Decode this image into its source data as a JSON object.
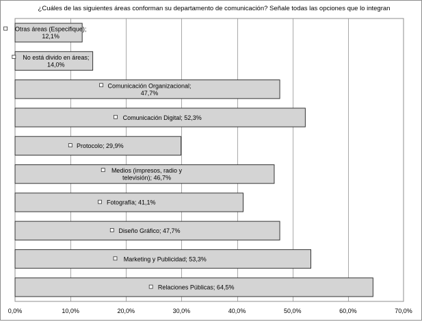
{
  "chart_data": {
    "type": "bar",
    "orientation": "horizontal",
    "title": "¿Cuáles de las siguientes áreas conforman su departamento de comunicación? Señale todas las opciones que lo integran",
    "xlim": [
      0,
      70
    ],
    "grid": "vertical",
    "legend": "none",
    "colors": {
      "bar_fill": "#d4d4d4",
      "bar_stroke": "#333333",
      "grid": "#a8a8a8",
      "frame": "#8c8c8c",
      "text": "#000000"
    },
    "ticks": [
      "0,0%",
      "10,0%",
      "20,0%",
      "30,0%",
      "40,0%",
      "50,0%",
      "60,0%",
      "70,0%"
    ],
    "tick_values": [
      0,
      10,
      20,
      30,
      40,
      50,
      60,
      70
    ],
    "categories": [
      "Otras áreas (Especifique)",
      "No está divido en áreas",
      "Comunicación Organizacional",
      "Comunicación Digital",
      "Protocolo",
      "Medios (impresos, radio y televisión)",
      "Fotografía",
      "Diseño Gráfico",
      "Marketing y Publicidad",
      "Relaciones Públicas"
    ],
    "values": [
      12.1,
      14.0,
      47.7,
      52.3,
      29.9,
      46.7,
      41.1,
      47.7,
      53.3,
      64.5
    ],
    "data_labels": [
      [
        "Otras áreas (Especifique);",
        "12,1%"
      ],
      [
        "No está divido en áreas;",
        "14,0%"
      ],
      [
        "Comunicación Organizacional;",
        "47,7%"
      ],
      [
        "Comunicación Digital; 52,3%"
      ],
      [
        "Protocolo; 29,9%"
      ],
      [
        "Medios (impresos, radio y",
        "televisión); 46,7%"
      ],
      [
        "Fotografía; 41,1%"
      ],
      [
        "Diseño Gráfico; 47,7%"
      ],
      [
        "Marketing y Publicidad; 53,3%"
      ],
      [
        "Relaciones Públicas; 64,5%"
      ]
    ]
  }
}
